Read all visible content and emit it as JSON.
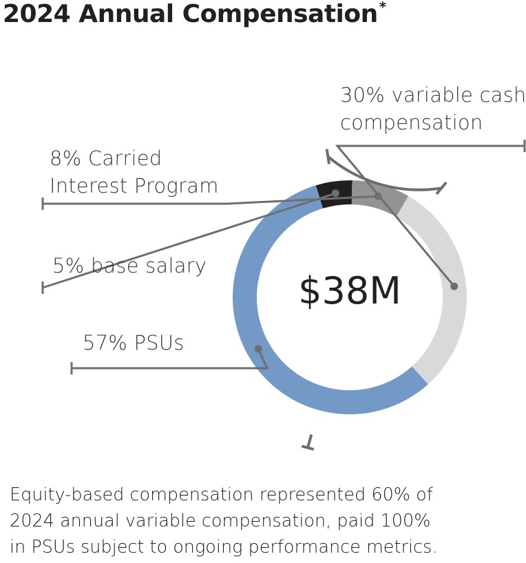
{
  "title": "2024 Annual Compensation",
  "title_marker": "*",
  "chart_data": {
    "type": "pie",
    "variant": "donut",
    "center_label": "$38M",
    "slices": [
      {
        "label_lines": [
          "30% variable cash",
          "compensation"
        ],
        "value": 30,
        "color": "#d9d9d9"
      },
      {
        "label_lines": [
          "57% PSUs"
        ],
        "value": 57,
        "color": "#7399c6"
      },
      {
        "label_lines": [
          "5% base salary"
        ],
        "value": 5,
        "color": "#231f20"
      },
      {
        "label_lines": [
          "8% Carried",
          "Interest Program"
        ],
        "value": 8,
        "color": "#939393"
      }
    ],
    "bracket_color": "#6d6e71",
    "leader_color": "#6d6e71"
  },
  "footnote_lines": [
    "Equity-based compensation represented 60% of",
    "2024 annual variable compensation, paid 100%",
    "in PSUs subject to ongoing performance metrics."
  ]
}
